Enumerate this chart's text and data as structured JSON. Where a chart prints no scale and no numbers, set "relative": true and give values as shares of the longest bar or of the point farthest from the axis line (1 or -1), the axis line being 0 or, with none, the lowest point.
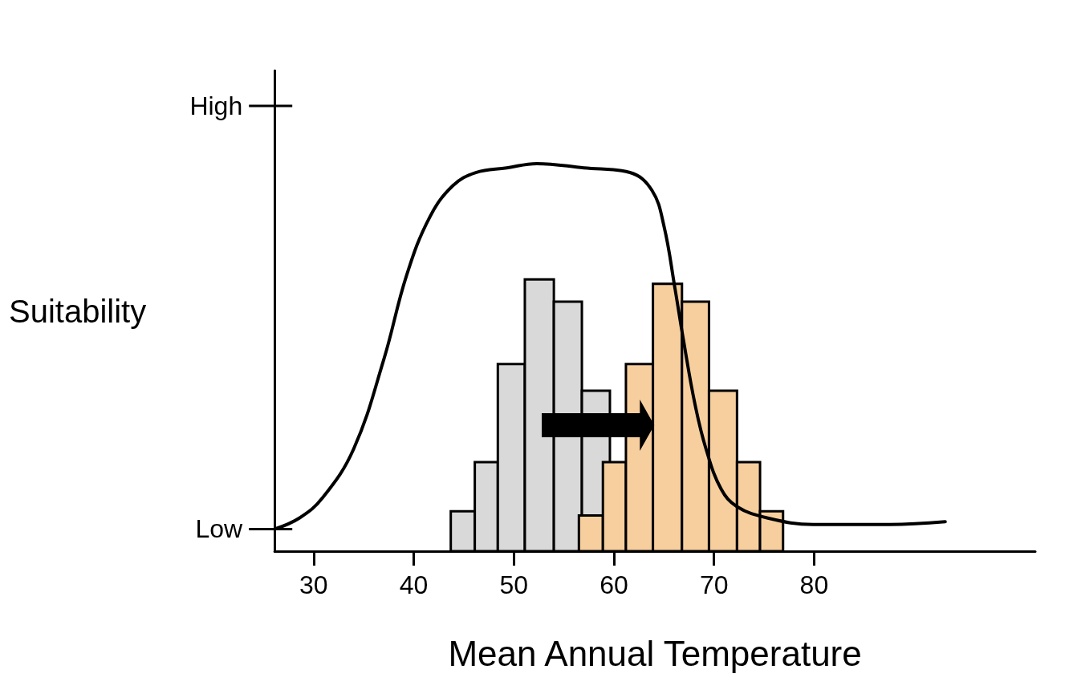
{
  "chart_data": {
    "type": "histogram",
    "relative": true,
    "xlabel": "Mean Annual Temperature",
    "ylabel": "Suitability",
    "xlim": [
      26.1,
      102.1
    ],
    "xticks": [
      30,
      40,
      50,
      60,
      70,
      80
    ],
    "annotations": [
      "High",
      "Low"
    ],
    "series": [
      {
        "color": "#d9d9d9",
        "bins": [
          43.7,
          46.1,
          48.4,
          51.1,
          54.0,
          56.8,
          59.6
        ],
        "values": [
          0.103,
          0.23,
          0.483,
          0.701,
          0.644,
          0.414
        ]
      },
      {
        "color": "#f7cf9e",
        "bins": [
          56.5,
          58.9,
          61.2,
          63.9,
          66.8,
          69.5,
          72.3,
          74.6,
          76.9
        ],
        "values": [
          0.092,
          0.23,
          0.483,
          0.69,
          0.644,
          0.414,
          0.23,
          0.103
        ]
      },
      {
        "type": "line",
        "color": "#000000",
        "x": [
          26.1,
          28.6,
          30.9,
          34.0,
          37.0,
          39.3,
          41.6,
          43.9,
          46.2,
          49.3,
          52.3,
          57.0,
          61.6,
          63.8,
          65.0,
          66.1,
          66.9,
          68.1,
          69.2,
          70.7,
          72.3,
          75.3,
          79.9,
          87.6,
          93.1
        ],
        "values": [
          0.057,
          0.086,
          0.138,
          0.264,
          0.494,
          0.713,
          0.862,
          0.943,
          0.977,
          0.989,
          1,
          0.989,
          0.977,
          0.931,
          0.839,
          0.678,
          0.552,
          0.379,
          0.264,
          0.161,
          0.115,
          0.086,
          0.069,
          0.069,
          0.076
        ]
      }
    ]
  }
}
